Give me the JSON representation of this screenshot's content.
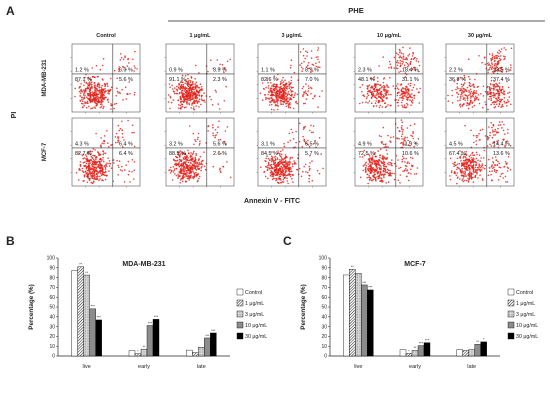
{
  "panel_a": {
    "label": "A",
    "group_label": "PHE",
    "y_axis_label": "PI",
    "x_axis_label": "Annexin V - FITC",
    "dot_color": "#e3231c",
    "columns": [
      "Control",
      "1 μg/mL",
      "3 μg/mL",
      "10 μg/mL",
      "30 μg/mL"
    ],
    "rows": [
      {
        "cell_line": "MDA-MB-231",
        "plots": [
          {
            "ul": "1.2 %",
            "ur": "6.0 %",
            "ll": "87.1 %",
            "lr": "5.6 %"
          },
          {
            "ul": "0.9 %",
            "ur": "3.5 %",
            "ll": "91.1 %",
            "lr": "2.3 %"
          },
          {
            "ul": "1.1 %",
            "ur": "8.9 %",
            "ll": "82.6 %",
            "lr": "7.0 %"
          },
          {
            "ul": "2.3 %",
            "ur": "18.4 %",
            "ll": "48.1 %",
            "lr": "31.1 %"
          },
          {
            "ul": "2.2 %",
            "ur": "23.5 %",
            "ll": "36.8 %",
            "lr": "37.4 %"
          }
        ]
      },
      {
        "cell_line": "MCF-7",
        "plots": [
          {
            "ul": "4.3 %",
            "ur": "6.4 %",
            "ll": "82.7 %",
            "lr": "6.4 %"
          },
          {
            "ul": "3.2 %",
            "ur": "5.6 %",
            "ll": "88.5 %",
            "lr": "2.6 %"
          },
          {
            "ul": "3.1 %",
            "ur": "6.5 %",
            "ll": "84.5 %",
            "lr": "5.7 %"
          },
          {
            "ul": "4.9 %",
            "ur": "11.9 %",
            "ll": "72.5 %",
            "lr": "10.6 %"
          },
          {
            "ul": "4.5 %",
            "ur": "14.4 %",
            "ll": "67.4 %",
            "lr": "13.6 %"
          }
        ]
      }
    ]
  },
  "chart_data": [
    {
      "panel_label": "B",
      "type": "bar",
      "title": "MDA-MB-231",
      "ylabel": "Percentage (%)",
      "xlabel": "",
      "categories": [
        "live",
        "early",
        "late"
      ],
      "ylim": [
        0,
        100
      ],
      "yticks": [
        0,
        10,
        20,
        30,
        40,
        50,
        60,
        70,
        80,
        90,
        100
      ],
      "legend": "right",
      "grid": false,
      "series": [
        {
          "name": "Control",
          "fill": "#ffffff",
          "pattern": "none",
          "values": [
            87.1,
            5.6,
            6.0
          ],
          "annotations": [
            "",
            "",
            ""
          ]
        },
        {
          "name": "1 μg/mL",
          "fill": "#ffffff",
          "pattern": "diagonal",
          "values": [
            91.1,
            2.3,
            3.5
          ],
          "annotations": [
            "**",
            "*",
            ""
          ]
        },
        {
          "name": "3 μg/mL",
          "fill": "#dddddd",
          "pattern": "dots",
          "values": [
            82.6,
            7.0,
            8.9
          ],
          "annotations": [
            "**",
            "**",
            ""
          ]
        },
        {
          "name": "10 μg/mL",
          "fill": "#8c8c8c",
          "pattern": "none",
          "values": [
            48.1,
            31.1,
            18.4
          ],
          "annotations": [
            "***",
            "***",
            "***"
          ]
        },
        {
          "name": "30 μg/mL",
          "fill": "#000000",
          "pattern": "none",
          "values": [
            36.8,
            37.4,
            23.5
          ],
          "annotations": [
            "***",
            "***",
            "***"
          ]
        }
      ]
    },
    {
      "panel_label": "C",
      "type": "bar",
      "title": "MCF-7",
      "ylabel": "Percentage (%)",
      "xlabel": "",
      "categories": [
        "live",
        "early",
        "late"
      ],
      "ylim": [
        0,
        100
      ],
      "yticks": [
        0,
        10,
        20,
        30,
        40,
        50,
        60,
        70,
        80,
        90,
        100
      ],
      "legend": "right",
      "grid": false,
      "series": [
        {
          "name": "Control",
          "fill": "#ffffff",
          "pattern": "none",
          "values": [
            82.7,
            6.4,
            6.4
          ],
          "annotations": [
            "",
            "",
            ""
          ]
        },
        {
          "name": "1 μg/mL",
          "fill": "#ffffff",
          "pattern": "diagonal",
          "values": [
            88.5,
            2.6,
            5.6
          ],
          "annotations": [
            "**",
            "*",
            ""
          ]
        },
        {
          "name": "3 μg/mL",
          "fill": "#dddddd",
          "pattern": "dots",
          "values": [
            84.5,
            5.7,
            6.5
          ],
          "annotations": [
            "",
            "**",
            ""
          ]
        },
        {
          "name": "10 μg/mL",
          "fill": "#8c8c8c",
          "pattern": "none",
          "values": [
            72.5,
            10.6,
            11.9
          ],
          "annotations": [
            "***",
            "***",
            "**"
          ]
        },
        {
          "name": "30 μg/mL",
          "fill": "#000000",
          "pattern": "none",
          "values": [
            67.4,
            13.6,
            14.4
          ],
          "annotations": [
            "***",
            "***",
            "*"
          ]
        }
      ]
    }
  ]
}
